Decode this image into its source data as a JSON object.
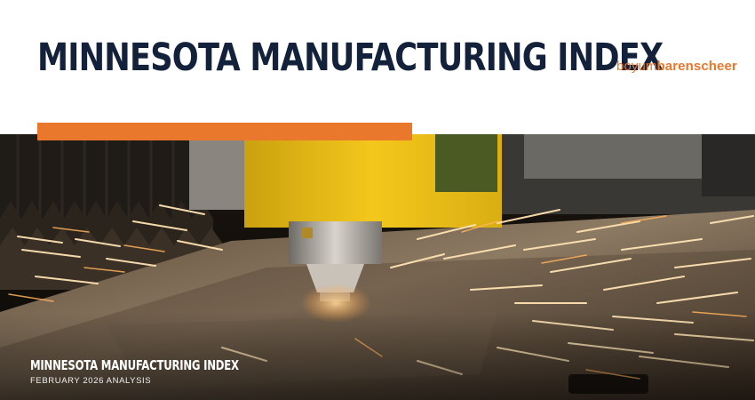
{
  "header": {
    "title": "MINNESOTA MANUFACTURING INDEX",
    "brand_part1": "boyum",
    "brand_part2": "barenscheer"
  },
  "hero": {
    "caption_title": "MINNESOTA MANUFACTURING INDEX",
    "caption_subtitle": "FEBRUARY 2026 ANALYSIS"
  },
  "colors": {
    "accent": "#e9772c",
    "title_navy": "#14213a",
    "machine_yellow": "#f1c40f"
  }
}
